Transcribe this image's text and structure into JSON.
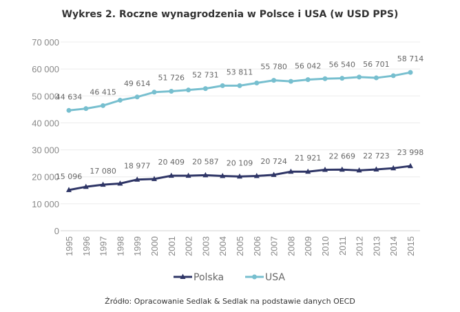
{
  "chart_data": {
    "type": "line",
    "title": "Wykres 2. Roczne wynagrodzenia w Polsce i USA (w USD PPS)",
    "x": [
      1995,
      1996,
      1997,
      1998,
      1999,
      2000,
      2001,
      2002,
      2003,
      2004,
      2005,
      2006,
      2007,
      2008,
      2009,
      2010,
      2011,
      2012,
      2013,
      2014,
      2015
    ],
    "x_tick_labels": [
      "1995",
      "1996",
      "1997",
      "1998",
      "1999",
      "2000",
      "2001",
      "2002",
      "2003",
      "2004",
      "2005",
      "2006",
      "2007",
      "2008",
      "2009",
      "2010",
      "2011",
      "2012",
      "2013",
      "2014",
      "2015"
    ],
    "ylim": [
      0,
      70000
    ],
    "y_ticks": [
      0,
      10000,
      20000,
      30000,
      40000,
      50000,
      60000,
      70000
    ],
    "y_tick_labels": [
      "0",
      "10 000",
      "20 000",
      "30 000",
      "40 000",
      "50 000",
      "60 000",
      "70 000"
    ],
    "grid": true,
    "legend": "bottom",
    "series": [
      {
        "name": "Polska",
        "color": "#2e3566",
        "marker": "triangle",
        "values": [
          15096,
          16300,
          17080,
          17500,
          18977,
          19200,
          20409,
          20400,
          20587,
          20300,
          20109,
          20300,
          20724,
          21900,
          21921,
          22600,
          22669,
          22400,
          22723,
          23200,
          23998
        ],
        "labels": [
          "15 096",
          null,
          "17 080",
          null,
          "18 977",
          null,
          "20 409",
          null,
          "20 587",
          null,
          "20 109",
          null,
          "20 724",
          null,
          "21 921",
          null,
          "22 669",
          null,
          "22 723",
          null,
          "23 998"
        ]
      },
      {
        "name": "USA",
        "color": "#77bfcf",
        "marker": "circle",
        "values": [
          44634,
          45300,
          46415,
          48400,
          49614,
          51400,
          51726,
          52200,
          52731,
          53800,
          53811,
          54800,
          55780,
          55400,
          56042,
          56400,
          56540,
          57000,
          56701,
          57500,
          58714
        ],
        "labels": [
          "44 634",
          null,
          "46 415",
          null,
          "49 614",
          null,
          "51 726",
          null,
          "52 731",
          null,
          "53 811",
          null,
          "55 780",
          null,
          "56 042",
          null,
          "56 540",
          null,
          "56 701",
          null,
          "58 714"
        ]
      }
    ],
    "source": "Źródło: Opracowanie Sedlak & Sedlak na podstawie danych OECD"
  }
}
